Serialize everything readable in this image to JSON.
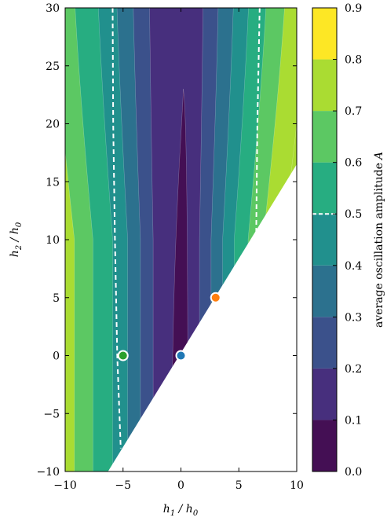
{
  "chart_data": {
    "type": "heatmap",
    "xlabel": "h",
    "xlabel_sub": "1",
    "xlabel_tail": " / h",
    "xlabel_tail_sub": "0",
    "ylabel": "h",
    "ylabel_sub": "2",
    "ylabel_tail": " / h",
    "ylabel_tail_sub": "0",
    "colorbar_label": "average oscillation amplitude",
    "colorbar_symbol": "A",
    "xlim": [
      -10,
      10
    ],
    "ylim": [
      -10,
      30
    ],
    "xticks": [
      -10,
      -5,
      0,
      5,
      10
    ],
    "yticks": [
      -10,
      -5,
      0,
      5,
      10,
      15,
      20,
      25,
      30
    ],
    "colorbar_ticks": [
      "0.0",
      "0.1",
      "0.2",
      "0.3",
      "0.4",
      "0.5",
      "0.6",
      "0.7",
      "0.8",
      "0.9"
    ],
    "levels": [
      0.0,
      0.1,
      0.2,
      0.3,
      0.4,
      0.5,
      0.6,
      0.7,
      0.8,
      0.9
    ],
    "level_colors": [
      "#440f54",
      "#472f7d",
      "#3b518b",
      "#2c718e",
      "#21908d",
      "#27ad81",
      "#5cc863",
      "#aadc32",
      "#fde725"
    ],
    "boundary_line": {
      "from": [
        -6.3,
        -10
      ],
      "to": [
        10,
        16.5
      ],
      "note_region": "below line is undefined (blank)"
    },
    "contour_x_boundaries_right": [
      0.6,
      1.6,
      2.6,
      3.6,
      4.6,
      5.8,
      7.1,
      8.8
    ],
    "contour_x_boundaries_left": [
      -0.8,
      -2.4,
      -3.5,
      -4.6,
      -5.9,
      -7.6,
      -9.2,
      -10.4
    ],
    "innermost_region_top_y": 23,
    "dashed_contour_level": 0.5,
    "dashed_contour_left": [
      [
        -5.9,
        30
      ],
      [
        -5.85,
        20
      ],
      [
        -5.7,
        10
      ],
      [
        -5.5,
        0
      ],
      [
        -5.2,
        -8
      ]
    ],
    "dashed_contour_right": [
      [
        6.8,
        30
      ],
      [
        6.6,
        20
      ],
      [
        6.5,
        10.5
      ]
    ],
    "markers": [
      {
        "x": -5,
        "y": 0,
        "color": "#2ca02c"
      },
      {
        "x": 0,
        "y": 0,
        "color": "#1f77b4"
      },
      {
        "x": 3,
        "y": 5,
        "color": "#ff7f0e"
      }
    ]
  }
}
